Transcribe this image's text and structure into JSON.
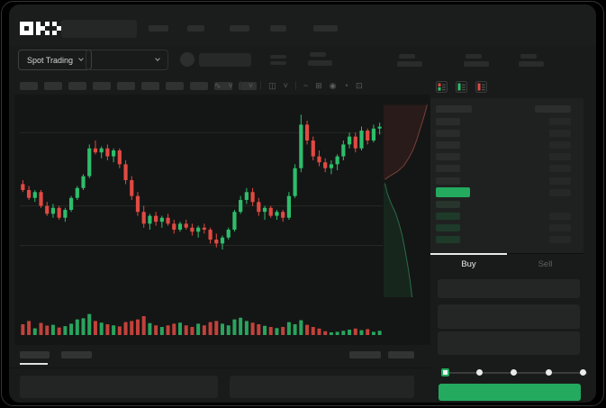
{
  "colors": {
    "green": "#2ebd6b",
    "red": "#e04a42",
    "accent_green": "#23aa5f",
    "tab_indicator": "#e8eae9"
  },
  "header": {
    "logo": "OKX"
  },
  "market_toolbar": {
    "market_selector_label": "Spot Trading"
  },
  "chart_toolbar": {
    "icons": [
      {
        "name": "zigzag-icon",
        "glyph": "∿"
      },
      {
        "name": "chevron-down-icon",
        "glyph": "˅"
      },
      {
        "name": "sep"
      },
      {
        "name": "chevron-down-icon",
        "glyph": "˅"
      },
      {
        "name": "sep"
      },
      {
        "name": "candle-type-icon",
        "glyph": "◫"
      },
      {
        "name": "chevron-down-icon",
        "glyph": "˅"
      },
      {
        "name": "sep"
      },
      {
        "name": "indicator-icon",
        "glyph": "~"
      },
      {
        "name": "compare-icon",
        "glyph": "⊞"
      },
      {
        "name": "camera-icon",
        "glyph": "◉"
      },
      {
        "name": "history-icon",
        "glyph": "◔"
      },
      {
        "name": "fullscreen-icon",
        "glyph": "⊡"
      }
    ]
  },
  "chart_data": {
    "type": "candlestick",
    "note_scale": "values are percent of pane height, 0=bottom 100=top",
    "gridlines": [
      84,
      47,
      27
    ],
    "candles": [
      [
        58,
        60,
        54,
        55
      ],
      [
        55,
        57,
        50,
        51
      ],
      [
        51,
        55,
        49,
        54
      ],
      [
        54,
        55,
        46,
        47
      ],
      [
        47,
        49,
        42,
        43
      ],
      [
        43,
        48,
        41,
        46
      ],
      [
        46,
        47,
        40,
        41
      ],
      [
        41,
        46,
        39,
        45
      ],
      [
        45,
        52,
        44,
        51
      ],
      [
        51,
        57,
        50,
        56
      ],
      [
        56,
        63,
        55,
        62
      ],
      [
        62,
        78,
        61,
        76
      ],
      [
        76,
        80,
        73,
        74
      ],
      [
        74,
        77,
        71,
        76
      ],
      [
        76,
        78,
        70,
        72
      ],
      [
        72,
        76,
        69,
        75
      ],
      [
        75,
        76,
        66,
        68
      ],
      [
        68,
        70,
        58,
        60
      ],
      [
        60,
        62,
        50,
        52
      ],
      [
        52,
        54,
        42,
        44
      ],
      [
        44,
        47,
        36,
        38
      ],
      [
        38,
        43,
        35,
        42
      ],
      [
        42,
        44,
        37,
        39
      ],
      [
        39,
        42,
        36,
        41
      ],
      [
        41,
        43,
        37,
        38
      ],
      [
        38,
        40,
        33,
        35
      ],
      [
        35,
        39,
        34,
        38
      ],
      [
        38,
        40,
        35,
        36
      ],
      [
        36,
        38,
        32,
        34
      ],
      [
        34,
        37,
        31,
        36
      ],
      [
        36,
        38,
        33,
        35
      ],
      [
        35,
        36,
        28,
        30
      ],
      [
        30,
        33,
        26,
        28
      ],
      [
        28,
        32,
        25,
        31
      ],
      [
        31,
        36,
        30,
        35
      ],
      [
        35,
        45,
        34,
        44
      ],
      [
        44,
        52,
        43,
        50
      ],
      [
        50,
        56,
        48,
        54
      ],
      [
        54,
        56,
        47,
        49
      ],
      [
        49,
        51,
        42,
        44
      ],
      [
        44,
        47,
        40,
        46
      ],
      [
        46,
        47,
        41,
        42
      ],
      [
        42,
        45,
        40,
        44
      ],
      [
        44,
        45,
        39,
        41
      ],
      [
        41,
        54,
        40,
        52
      ],
      [
        52,
        68,
        51,
        66
      ],
      [
        66,
        93,
        64,
        88
      ],
      [
        88,
        90,
        78,
        80
      ],
      [
        80,
        82,
        70,
        72
      ],
      [
        72,
        75,
        67,
        69
      ],
      [
        69,
        71,
        64,
        66
      ],
      [
        66,
        70,
        63,
        68
      ],
      [
        68,
        73,
        65,
        72
      ],
      [
        72,
        80,
        70,
        78
      ],
      [
        78,
        84,
        76,
        82
      ],
      [
        82,
        84,
        74,
        76
      ],
      [
        76,
        87,
        75,
        85
      ],
      [
        85,
        86,
        78,
        80
      ],
      [
        80,
        88,
        79,
        86
      ],
      [
        86,
        89,
        83,
        87
      ]
    ],
    "volumes": [
      40,
      52,
      25,
      45,
      35,
      38,
      28,
      33,
      42,
      58,
      62,
      78,
      52,
      46,
      40,
      36,
      32,
      48,
      52,
      58,
      70,
      44,
      36,
      30,
      36,
      42,
      46,
      36,
      30,
      42,
      36,
      48,
      52,
      42,
      36,
      58,
      64,
      52,
      46,
      40,
      34,
      30,
      26,
      30,
      48,
      40,
      55,
      38,
      30,
      24,
      14,
      10,
      12,
      16,
      20,
      24,
      18,
      22,
      12,
      16
    ],
    "depth": {
      "asks_curve": [
        [
          0.95,
          0.02
        ],
        [
          0.88,
          0.08
        ],
        [
          0.8,
          0.14
        ],
        [
          0.72,
          0.2
        ],
        [
          0.64,
          0.25
        ],
        [
          0.55,
          0.29
        ],
        [
          0.44,
          0.33
        ],
        [
          0.3,
          0.36
        ],
        [
          0.12,
          0.385
        ],
        [
          0.03,
          0.4
        ]
      ],
      "bids_curve": [
        [
          0.03,
          0.42
        ],
        [
          0.08,
          0.47
        ],
        [
          0.16,
          0.52
        ],
        [
          0.26,
          0.57
        ],
        [
          0.33,
          0.62
        ],
        [
          0.4,
          0.68
        ],
        [
          0.46,
          0.75
        ],
        [
          0.52,
          0.83
        ],
        [
          0.58,
          0.92
        ],
        [
          0.62,
          1.0
        ]
      ]
    }
  },
  "orderbook": {
    "view_icons": [
      {
        "name": "book-split-icon"
      },
      {
        "name": "book-bids-icon"
      },
      {
        "name": "book-asks-icon"
      }
    ],
    "asks": [
      {
        "amount": true
      },
      {
        "amount": true
      },
      {
        "amount": true
      },
      {
        "amount": true
      },
      {
        "amount": true
      },
      {
        "amount": true
      }
    ],
    "last_price_row": {
      "highlight": true,
      "amount": true
    },
    "bids": [
      {
        "amount": false,
        "light": true
      },
      {
        "amount": true
      },
      {
        "amount": true
      },
      {
        "amount": true
      }
    ]
  },
  "trade_panel": {
    "tabs": [
      {
        "label": "Buy",
        "active": true
      },
      {
        "label": "Sell",
        "active": false
      }
    ],
    "slider_stops": [
      {
        "active": true
      },
      {
        "active": false
      },
      {
        "active": false
      },
      {
        "active": false
      },
      {
        "active": false
      }
    ]
  }
}
